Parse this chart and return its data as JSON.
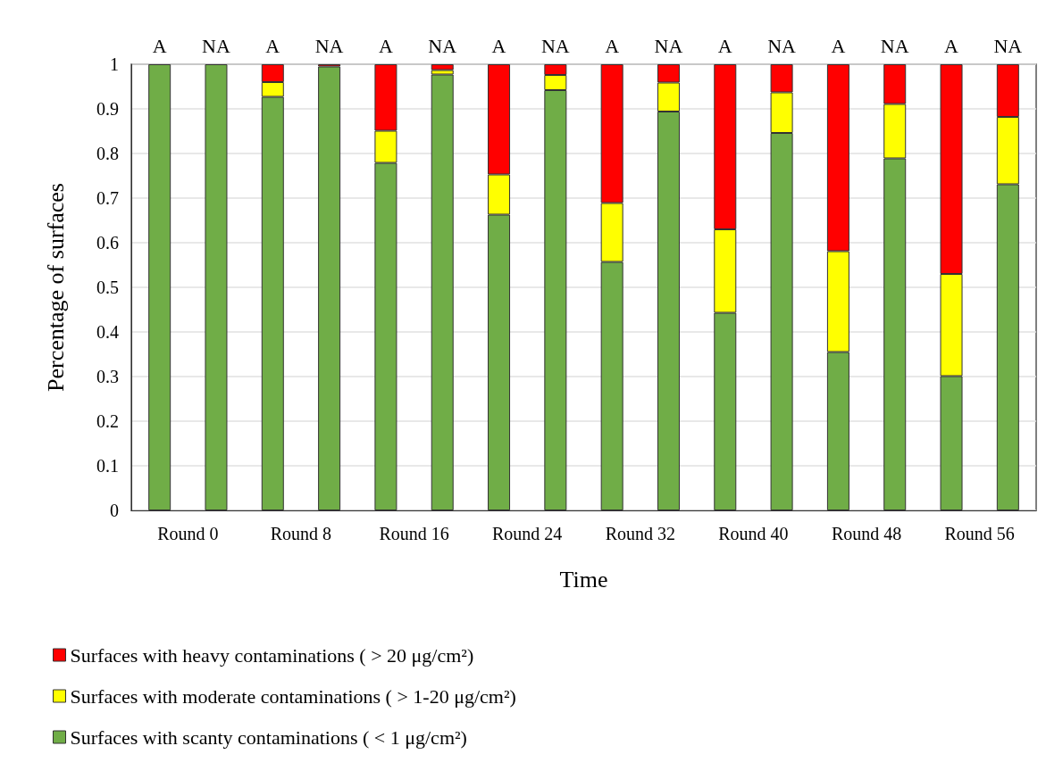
{
  "chart_data": {
    "type": "bar",
    "stacked": true,
    "xlabel": "Time",
    "ylabel": "Percentage of surfaces",
    "categories": [
      "A",
      "NA",
      "A",
      "NA",
      "A",
      "NA",
      "A",
      "NA",
      "A",
      "NA",
      "A",
      "NA",
      "A",
      "NA",
      "A",
      "NA"
    ],
    "annotations": [
      "Round 0",
      "Round 8",
      "Round 16",
      "Round 24",
      "Round 32",
      "Round 40",
      "Round 48",
      "Round 56"
    ],
    "ylim": [
      0,
      1
    ],
    "yticks": [
      0,
      0.1,
      0.2,
      0.3,
      0.4,
      0.5,
      0.6,
      0.7,
      0.8,
      0.9,
      1
    ],
    "grid": "y",
    "legend": "bottom left",
    "series": [
      {
        "name": "Surfaces with scanty contaminations ( < 1 μg/cm²)",
        "color": "#70ad47",
        "values": [
          1,
          1,
          0.927,
          0.995,
          0.779,
          0.977,
          0.663,
          0.942,
          0.557,
          0.894,
          0.443,
          0.846,
          0.355,
          0.789,
          0.301,
          0.731
        ]
      },
      {
        "name": "Surfaces with moderate contaminations ( > 1-20 μg/cm²)",
        "color": "#ffff00",
        "values": [
          0,
          0,
          0.033,
          0,
          0.072,
          0.01,
          0.09,
          0.034,
          0.132,
          0.065,
          0.187,
          0.091,
          0.226,
          0.122,
          0.229,
          0.151
        ]
      },
      {
        "name": "Surfaces with heavy contaminations ( > 20 μg/cm²)",
        "color": "#ff0000",
        "values": [
          0,
          0,
          0.04,
          0.005,
          0.149,
          0.013,
          0.247,
          0.024,
          0.311,
          0.041,
          0.37,
          0.063,
          0.419,
          0.089,
          0.47,
          0.118
        ]
      }
    ]
  }
}
